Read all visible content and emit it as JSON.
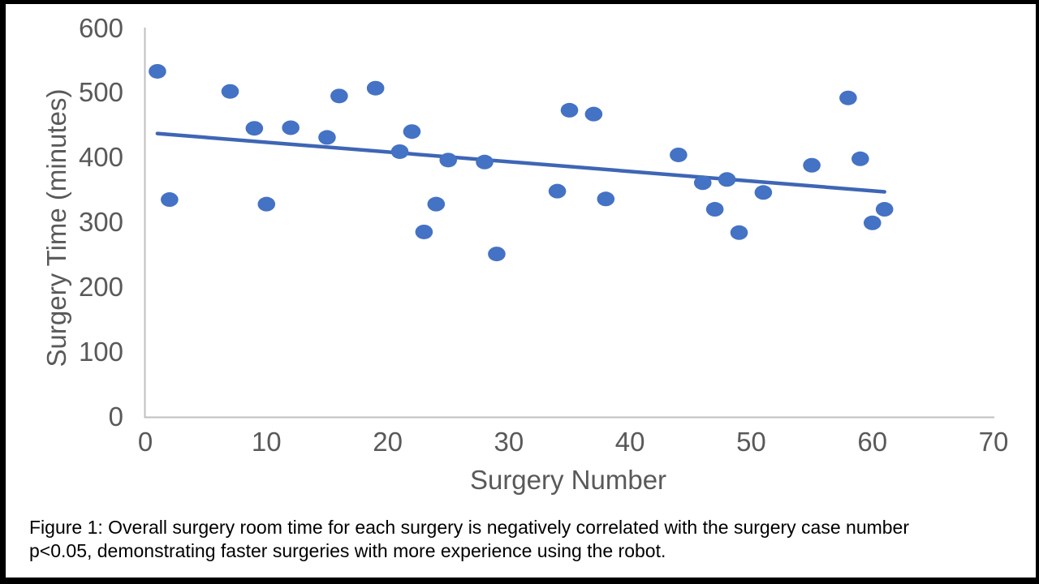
{
  "page": {
    "frame_color": "#000000",
    "panel_color": "#ffffff"
  },
  "chart_data": {
    "type": "scatter",
    "title": "",
    "xlabel": "Surgery Number",
    "ylabel": "Surgery Time (minutes)",
    "xlim": [
      0,
      70
    ],
    "ylim": [
      0,
      600
    ],
    "xticks": [
      "0",
      "10",
      "20",
      "30",
      "40",
      "50",
      "60",
      "70"
    ],
    "yticks": [
      "0",
      "100",
      "200",
      "300",
      "400",
      "500",
      "600"
    ],
    "grid": false,
    "legend": false,
    "marker_color": "#4472C4",
    "trendline_color": "#3E66B5",
    "axis_line_color": "#BFBFBF",
    "tick_label_color": "#595959",
    "axis_title_color": "#595959",
    "points": [
      [
        1,
        533
      ],
      [
        2,
        335
      ],
      [
        7,
        502
      ],
      [
        9,
        445
      ],
      [
        10,
        328
      ],
      [
        12,
        446
      ],
      [
        15,
        431
      ],
      [
        16,
        495
      ],
      [
        19,
        507
      ],
      [
        21,
        409
      ],
      [
        22,
        440
      ],
      [
        23,
        285
      ],
      [
        24,
        328
      ],
      [
        25,
        396
      ],
      [
        28,
        393
      ],
      [
        29,
        251
      ],
      [
        34,
        348
      ],
      [
        35,
        473
      ],
      [
        37,
        467
      ],
      [
        38,
        336
      ],
      [
        44,
        404
      ],
      [
        46,
        361
      ],
      [
        47,
        320
      ],
      [
        48,
        366
      ],
      [
        49,
        284
      ],
      [
        51,
        346
      ],
      [
        55,
        388
      ],
      [
        58,
        492
      ],
      [
        59,
        398
      ],
      [
        60,
        299
      ],
      [
        61,
        320
      ]
    ],
    "trendline": {
      "x1": 1,
      "y1": 437,
      "x2": 61,
      "y2": 347
    }
  },
  "caption": {
    "lines": [
      "Figure 1: Overall surgery room time for each surgery is negatively correlated with the surgery case number",
      "p<0.05, demonstrating faster surgeries with more experience using the robot."
    ]
  }
}
